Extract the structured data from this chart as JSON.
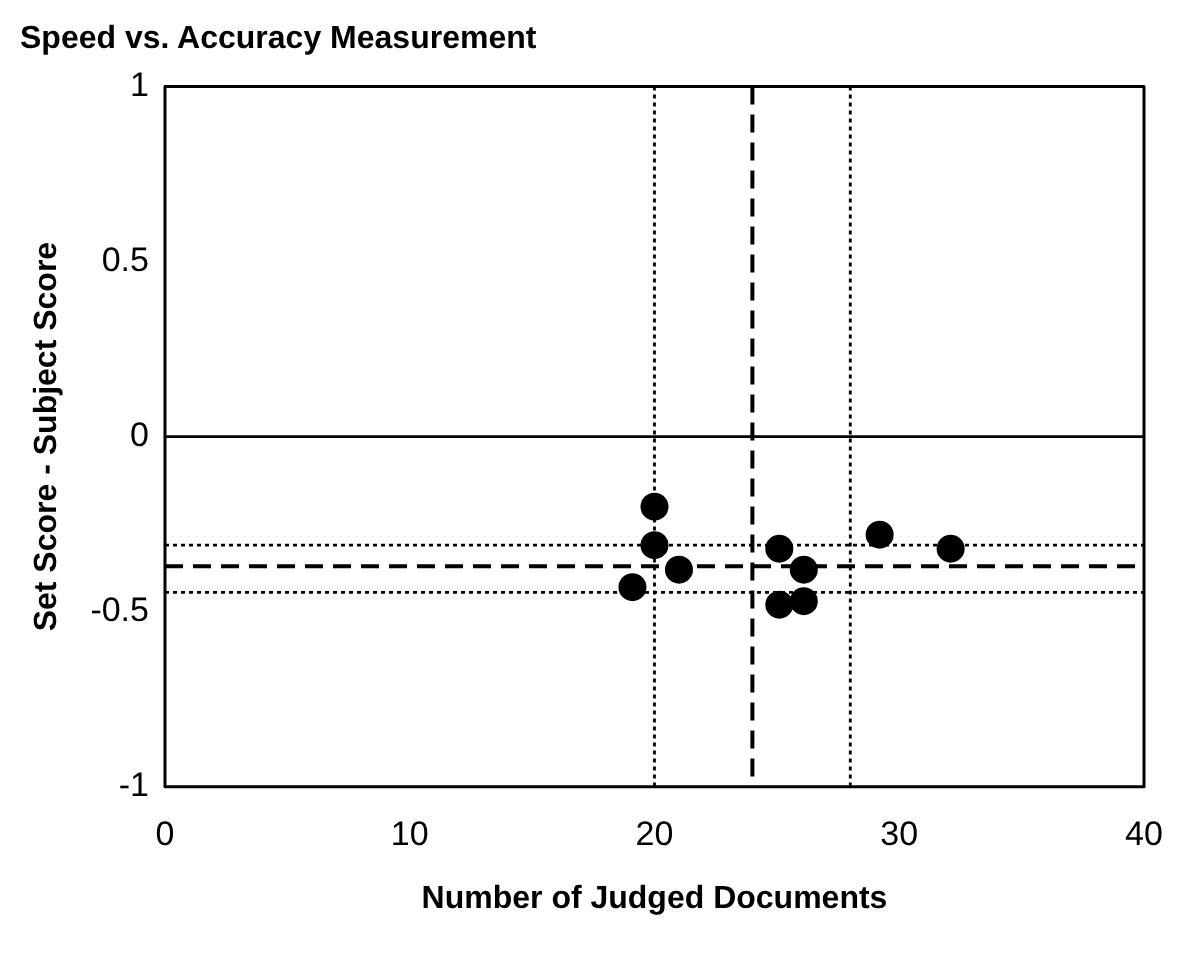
{
  "chart_data": {
    "type": "scatter",
    "title": "Speed vs. Accuracy Measurement",
    "xlabel": "Number of Judged Documents",
    "ylabel": "Set Score - Subject Score",
    "series": [
      {
        "color": "#000000",
        "x": [
          20,
          20,
          19.1,
          21,
          25.1,
          26.1,
          25.1,
          26.1,
          29.2,
          32.1
        ],
        "values": [
          -0.2,
          -0.31,
          -0.43,
          -0.38,
          -0.32,
          -0.38,
          -0.48,
          -0.47,
          -0.28,
          -0.32
        ]
      }
    ],
    "xlim": [
      0,
      40
    ],
    "xticks": [
      0,
      10,
      20,
      30,
      40
    ],
    "ylim": [
      -1,
      1
    ],
    "yticks": [
      -1,
      -0.5,
      0,
      0.5,
      1
    ],
    "ref_lines": [
      {
        "axis": "y",
        "value": 0,
        "color": "#000000",
        "line_style": "solid"
      },
      {
        "axis": "x",
        "value": 20,
        "color": "#000000",
        "line_style": "dotted"
      },
      {
        "axis": "x",
        "value": 24,
        "color": "#000000",
        "line_style": "dashed"
      },
      {
        "axis": "x",
        "value": 28,
        "color": "#000000",
        "line_style": "dotted"
      },
      {
        "axis": "y",
        "value": -0.31,
        "color": "#000000",
        "line_style": "dotted"
      },
      {
        "axis": "y",
        "value": -0.37,
        "color": "#000000",
        "line_style": "dashed"
      },
      {
        "axis": "y",
        "value": -0.445,
        "color": "#000000",
        "line_style": "dotted"
      }
    ],
    "grid": false,
    "legend": false,
    "marker": "circle"
  }
}
